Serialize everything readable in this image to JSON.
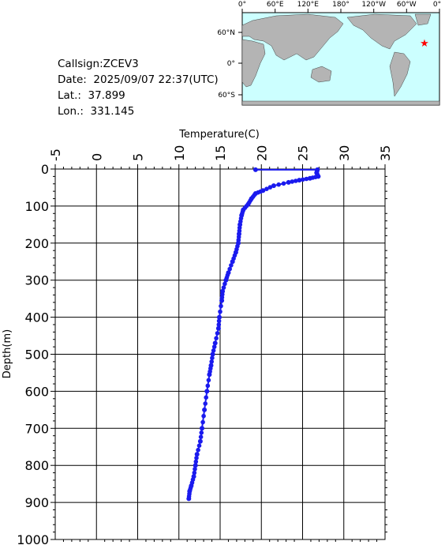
{
  "info": {
    "callsign": "Callsign:ZCEV3",
    "date": "Date:  2025/09/07 22:37(UTC)",
    "lat": "Lat.:  37.899",
    "lon": "Lon.:  331.145"
  },
  "map": {
    "top_labels": [
      "0°",
      "60°E",
      "120°E",
      "180°",
      "120°W",
      "60°W",
      "0°"
    ],
    "left_labels": [
      "60°N",
      "0°",
      "60°S"
    ],
    "marker_color": "#ff0000",
    "ocean_color": "#ccffff",
    "land_color": "#b4b4b4"
  },
  "chart_data": {
    "type": "line",
    "xlabel": "Temperature(C)",
    "ylabel": "Depth(m)",
    "xlim": [
      -5,
      35
    ],
    "ylim": [
      1000,
      0
    ],
    "x_ticks": [
      "-5",
      "0",
      "5",
      "10",
      "15",
      "20",
      "25",
      "30",
      "35"
    ],
    "y_ticks": [
      "0",
      "100",
      "200",
      "300",
      "400",
      "500",
      "600",
      "700",
      "800",
      "900",
      "1000"
    ],
    "series_color": "#1a1aee",
    "profile": [
      [
        19.3,
        2
      ],
      [
        26.8,
        2
      ],
      [
        26.7,
        10
      ],
      [
        26.9,
        20
      ],
      [
        25.9,
        25
      ],
      [
        24.6,
        30
      ],
      [
        23.3,
        36
      ],
      [
        21.5,
        45
      ],
      [
        20.2,
        58
      ],
      [
        19.3,
        66
      ],
      [
        18.8,
        80
      ],
      [
        18.4,
        95
      ],
      [
        17.8,
        110
      ],
      [
        17.6,
        125
      ],
      [
        17.4,
        150
      ],
      [
        17.3,
        175
      ],
      [
        17.2,
        200
      ],
      [
        16.9,
        225
      ],
      [
        16.5,
        250
      ],
      [
        16.0,
        280
      ],
      [
        15.7,
        300
      ],
      [
        15.3,
        330
      ],
      [
        15.2,
        355
      ],
      [
        14.9,
        400
      ],
      [
        14.8,
        430
      ],
      [
        14.4,
        470
      ],
      [
        14.1,
        500
      ],
      [
        13.9,
        530
      ],
      [
        13.7,
        555
      ],
      [
        13.4,
        600
      ],
      [
        13.1,
        650
      ],
      [
        12.8,
        700
      ],
      [
        12.6,
        735
      ],
      [
        12.2,
        770
      ],
      [
        12.0,
        800
      ],
      [
        11.8,
        830
      ],
      [
        11.5,
        855
      ],
      [
        11.3,
        870
      ],
      [
        11.2,
        890
      ]
    ]
  }
}
